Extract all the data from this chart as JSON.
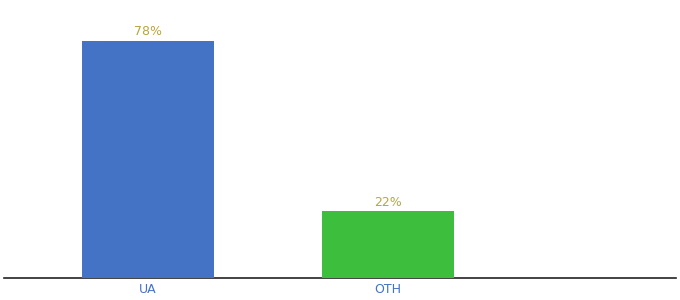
{
  "categories": [
    "UA",
    "OTH"
  ],
  "values": [
    78,
    22
  ],
  "bar_colors": [
    "#4472C4",
    "#3DBE3D"
  ],
  "labels": [
    "78%",
    "22%"
  ],
  "label_color": "#b5a642",
  "ylim": [
    0,
    90
  ],
  "background_color": "#ffffff",
  "tick_color": "#4472C4",
  "label_fontsize": 9,
  "tick_fontsize": 9,
  "bar_width": 0.55,
  "x_positions": [
    1,
    2
  ],
  "xlim": [
    0.4,
    3.2
  ]
}
